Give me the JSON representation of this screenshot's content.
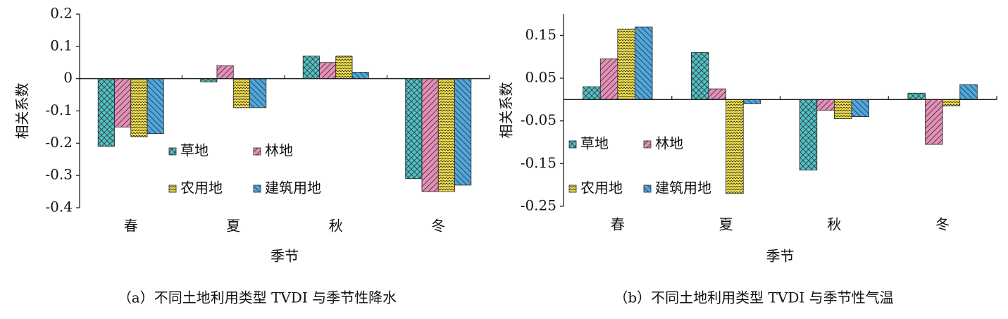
{
  "chart_data": [
    {
      "type": "bar",
      "caption": "（a）不同土地利用类型 TVDI 与季节性降水",
      "xlabel": "季节",
      "ylabel": "相关系数",
      "categories": [
        "春",
        "夏",
        "秋",
        "冬"
      ],
      "series": [
        {
          "name": "草地",
          "color": "#4fc3c8",
          "values": [
            -0.21,
            -0.01,
            0.07,
            -0.31
          ]
        },
        {
          "name": "林地",
          "color": "#e58fb8",
          "values": [
            -0.15,
            0.04,
            0.05,
            -0.35
          ]
        },
        {
          "name": "农用地",
          "color": "#f2e04a",
          "values": [
            -0.18,
            -0.09,
            0.07,
            -0.35
          ]
        },
        {
          "name": "建筑用地",
          "color": "#4ea7de",
          "values": [
            -0.17,
            -0.09,
            0.02,
            -0.33
          ]
        }
      ],
      "ylim": [
        -0.4,
        0.2
      ],
      "yticks": [
        -0.4,
        -0.3,
        -0.2,
        -0.1,
        0,
        0.1,
        0.2
      ]
    },
    {
      "type": "bar",
      "caption": "（b）不同土地利用类型 TVDI 与季节性气温",
      "xlabel": "季节",
      "ylabel": "相关系数",
      "categories": [
        "春",
        "夏",
        "秋",
        "冬"
      ],
      "series": [
        {
          "name": "草地",
          "color": "#4fc3c8",
          "values": [
            0.03,
            0.11,
            -0.165,
            0.015
          ]
        },
        {
          "name": "林地",
          "color": "#e58fb8",
          "values": [
            0.095,
            0.025,
            -0.025,
            -0.105
          ]
        },
        {
          "name": "农用地",
          "color": "#f2e04a",
          "values": [
            0.165,
            -0.22,
            -0.045,
            -0.015
          ]
        },
        {
          "name": "建筑用地",
          "color": "#4ea7de",
          "values": [
            0.17,
            -0.01,
            -0.04,
            0.035
          ]
        }
      ],
      "ylim": [
        -0.25,
        0.2
      ],
      "yticks": [
        -0.25,
        -0.15,
        -0.05,
        0.05,
        0.15
      ]
    }
  ]
}
